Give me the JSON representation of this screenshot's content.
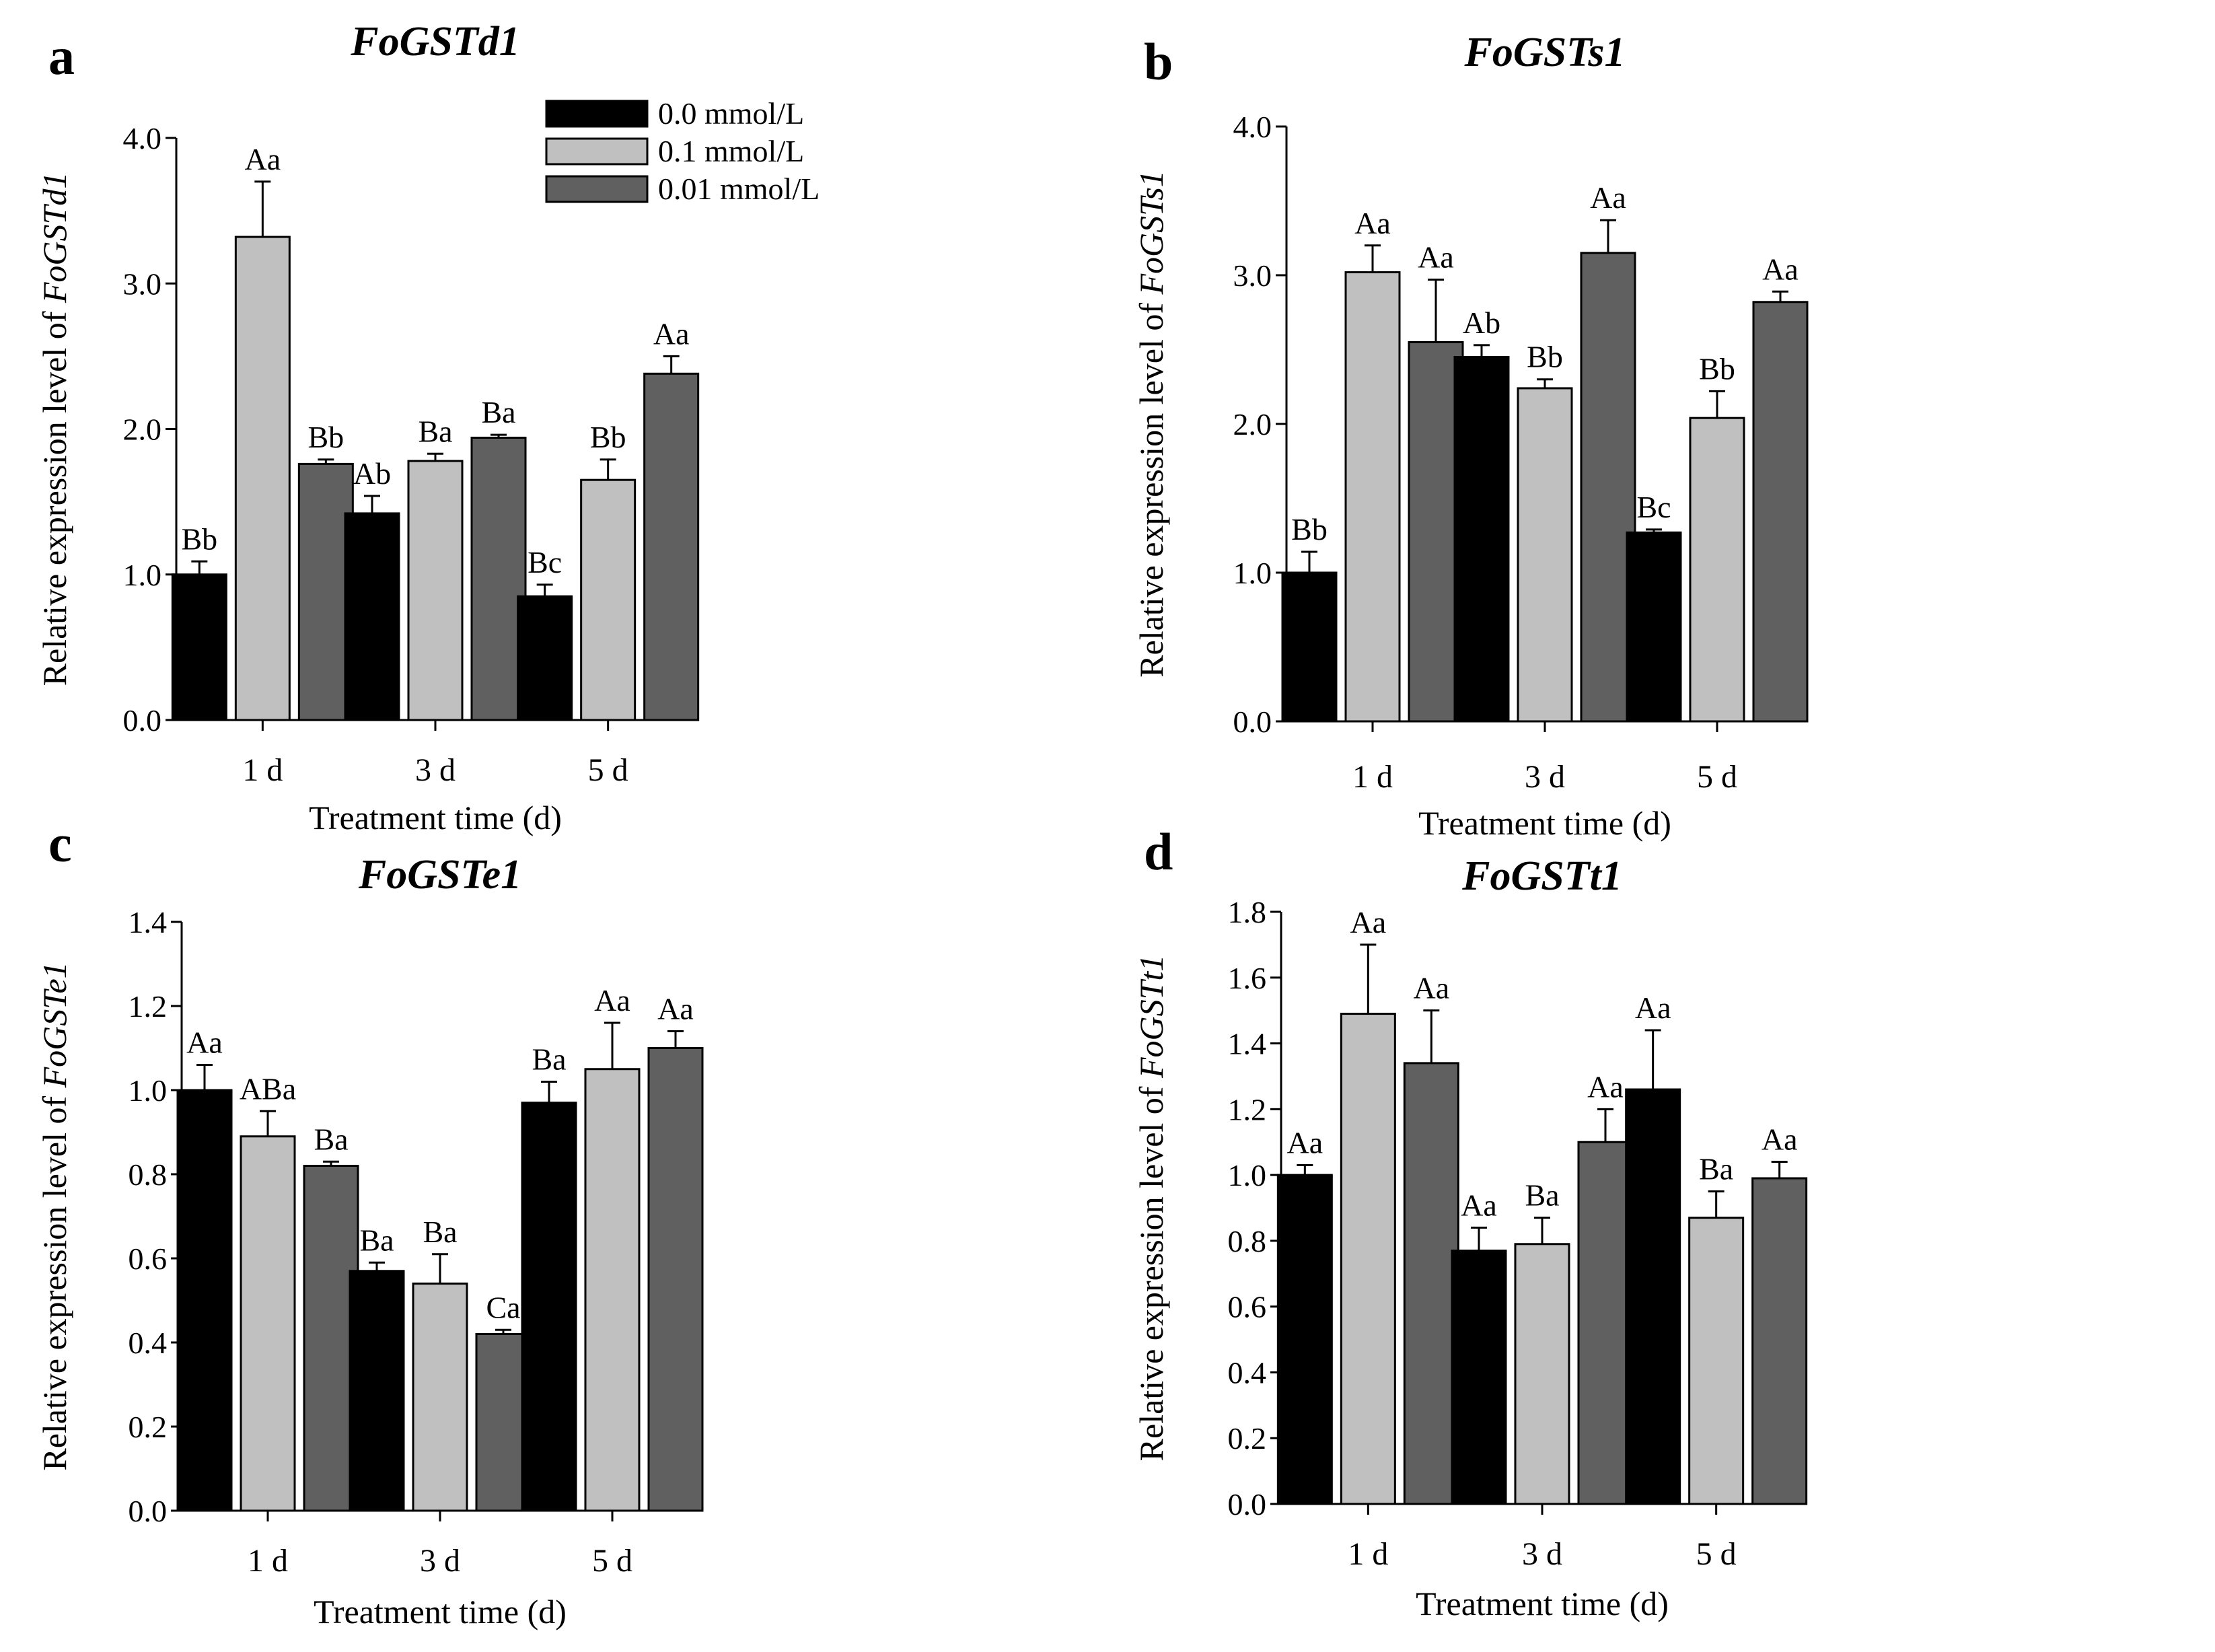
{
  "figure": {
    "legend": [
      {
        "label": "0.0 mmol/L",
        "color": "#000000"
      },
      {
        "label": "0.1 mmol/L",
        "color": "#c0c0c0"
      },
      {
        "label": "0.01 mmol/L",
        "color": "#606060"
      }
    ]
  },
  "chart_data": [
    {
      "panel": "a",
      "type": "bar",
      "title": "FoGSTd1",
      "xlabel": "Treatment time (d)",
      "ylabel_prefix": "Relative expression level of ",
      "ylabel_gene": "FoGSTd1",
      "categories": [
        "1 d",
        "3 d",
        "5 d"
      ],
      "ylim": [
        0,
        4.0
      ],
      "yticks": [
        "0.0",
        "1.0",
        "2.0",
        "3.0",
        "4.0"
      ],
      "series": [
        {
          "name": "0.0 mmol/L",
          "color": "#000000",
          "values": [
            1.0,
            1.42,
            0.85
          ],
          "errors": [
            0.09,
            0.12,
            0.08
          ],
          "labels": [
            "Bb",
            "Ab",
            "Bc"
          ]
        },
        {
          "name": "0.1 mmol/L",
          "color": "#c0c0c0",
          "values": [
            3.32,
            1.78,
            1.65
          ],
          "errors": [
            0.38,
            0.05,
            0.14
          ],
          "labels": [
            "Aa",
            "Ba",
            "Bb"
          ]
        },
        {
          "name": "0.01 mmol/L",
          "color": "#606060",
          "values": [
            1.76,
            1.94,
            2.38
          ],
          "errors": [
            0.03,
            0.02,
            0.12
          ],
          "labels": [
            "Bb",
            "Ba",
            "Aa"
          ]
        }
      ]
    },
    {
      "panel": "b",
      "type": "bar",
      "title": "FoGSTs1",
      "xlabel": "Treatment time (d)",
      "ylabel_prefix": "Relative expression level of ",
      "ylabel_gene": "FoGSTs1",
      "categories": [
        "1 d",
        "3 d",
        "5 d"
      ],
      "ylim": [
        0,
        4.0
      ],
      "yticks": [
        "0.0",
        "1.0",
        "2.0",
        "3.0",
        "4.0"
      ],
      "series": [
        {
          "name": "0.0 mmol/L",
          "color": "#000000",
          "values": [
            1.0,
            2.45,
            1.27
          ],
          "errors": [
            0.14,
            0.08,
            0.02
          ],
          "labels": [
            "Bb",
            "Ab",
            "Bc"
          ]
        },
        {
          "name": "0.1 mmol/L",
          "color": "#c0c0c0",
          "values": [
            3.02,
            2.24,
            2.04
          ],
          "errors": [
            0.18,
            0.06,
            0.18
          ],
          "labels": [
            "Aa",
            "Bb",
            "Bb"
          ]
        },
        {
          "name": "0.01 mmol/L",
          "color": "#606060",
          "values": [
            2.55,
            3.15,
            2.82
          ],
          "errors": [
            0.42,
            0.22,
            0.07
          ],
          "labels": [
            "Aa",
            "Aa",
            "Aa"
          ]
        }
      ]
    },
    {
      "panel": "c",
      "type": "bar",
      "title": "FoGSTe1",
      "xlabel": "Treatment time (d)",
      "ylabel_prefix": "Relative expression level of ",
      "ylabel_gene": "FoGSTe1",
      "categories": [
        "1 d",
        "3 d",
        "5 d"
      ],
      "ylim": [
        0,
        1.4
      ],
      "yticks": [
        "0.0",
        "0.2",
        "0.4",
        "0.6",
        "0.8",
        "1.0",
        "1.2",
        "1.4"
      ],
      "series": [
        {
          "name": "0.0 mmol/L",
          "color": "#000000",
          "values": [
            1.0,
            0.57,
            0.97
          ],
          "errors": [
            0.06,
            0.02,
            0.05
          ],
          "labels": [
            "Aa",
            "Ba",
            "Ba"
          ]
        },
        {
          "name": "0.1 mmol/L",
          "color": "#c0c0c0",
          "values": [
            0.89,
            0.54,
            1.05
          ],
          "errors": [
            0.06,
            0.07,
            0.11
          ],
          "labels": [
            "ABa",
            "Ba",
            "Aa"
          ]
        },
        {
          "name": "0.01 mmol/L",
          "color": "#606060",
          "values": [
            0.82,
            0.42,
            1.1
          ],
          "errors": [
            0.01,
            0.01,
            0.04
          ],
          "labels": [
            "Ba",
            "Ca",
            "Aa"
          ]
        }
      ]
    },
    {
      "panel": "d",
      "type": "bar",
      "title": "FoGSTt1",
      "xlabel": "Treatment time (d)",
      "ylabel_prefix": "Relative expression level of ",
      "ylabel_gene": "FoGSTt1",
      "categories": [
        "1 d",
        "3 d",
        "5 d"
      ],
      "ylim": [
        0,
        1.8
      ],
      "yticks": [
        "0.0",
        "0.2",
        "0.4",
        "0.6",
        "0.8",
        "1.0",
        "1.2",
        "1.4",
        "1.6",
        "1.8"
      ],
      "series": [
        {
          "name": "0.0 mmol/L",
          "color": "#000000",
          "values": [
            1.0,
            0.77,
            1.26
          ],
          "errors": [
            0.03,
            0.07,
            0.18
          ],
          "labels": [
            "Aa",
            "Aa",
            "Aa"
          ]
        },
        {
          "name": "0.1 mmol/L",
          "color": "#c0c0c0",
          "values": [
            1.49,
            0.79,
            0.87
          ],
          "errors": [
            0.21,
            0.08,
            0.08
          ],
          "labels": [
            "Aa",
            "Ba",
            "Ba"
          ]
        },
        {
          "name": "0.01 mmol/L",
          "color": "#606060",
          "values": [
            1.34,
            1.1,
            0.99
          ],
          "errors": [
            0.16,
            0.1,
            0.05
          ],
          "labels": [
            "Aa",
            "Aa",
            "Aa"
          ]
        }
      ]
    }
  ]
}
